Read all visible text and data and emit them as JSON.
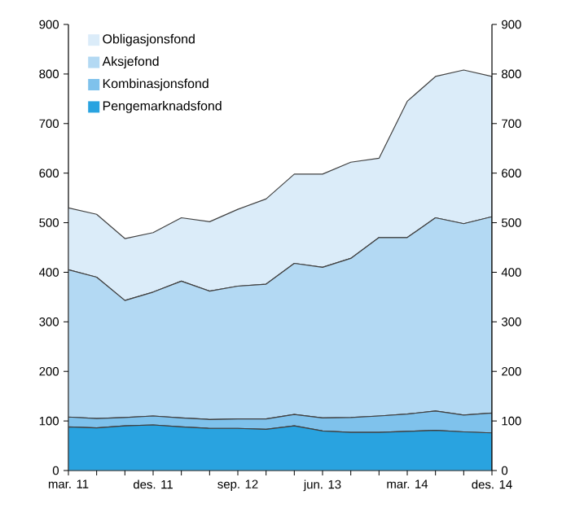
{
  "chart_data": {
    "type": "area",
    "stacked": true,
    "categories": [
      "mar. 11",
      null,
      null,
      "des. 11",
      null,
      null,
      "sep. 12",
      null,
      null,
      "jun. 13",
      null,
      null,
      "mar. 14",
      null,
      null,
      "des. 14"
    ],
    "series": [
      {
        "name": "Pengemarknadsfond",
        "color": "#29a3e0",
        "values": [
          88,
          86,
          90,
          92,
          88,
          85,
          85,
          83,
          90,
          80,
          77,
          77,
          79,
          81,
          78,
          76
        ]
      },
      {
        "name": "Kombinasjonsfond",
        "color": "#7fc2ec",
        "values": [
          20,
          19,
          17,
          18,
          18,
          18,
          19,
          21,
          23,
          26,
          30,
          33,
          35,
          39,
          34,
          40
        ]
      },
      {
        "name": "Aksjefond",
        "color": "#b3d9f3",
        "values": [
          297,
          285,
          236,
          250,
          276,
          259,
          268,
          272,
          305,
          304,
          321,
          360,
          356,
          390,
          386,
          396
        ]
      },
      {
        "name": "Obligasjonsfond",
        "color": "#dbecf9",
        "values": [
          125,
          127,
          125,
          120,
          128,
          140,
          155,
          172,
          180,
          188,
          194,
          160,
          275,
          285,
          310,
          283
        ]
      }
    ],
    "ylim": [
      0,
      900
    ],
    "yticks": [
      0,
      100,
      200,
      300,
      400,
      500,
      600,
      700,
      800,
      900
    ],
    "y2lim": [
      0,
      900
    ],
    "y2ticks": [
      0,
      100,
      200,
      300,
      400,
      500,
      600,
      700,
      800,
      900
    ],
    "legend": "top left",
    "grid": false
  }
}
